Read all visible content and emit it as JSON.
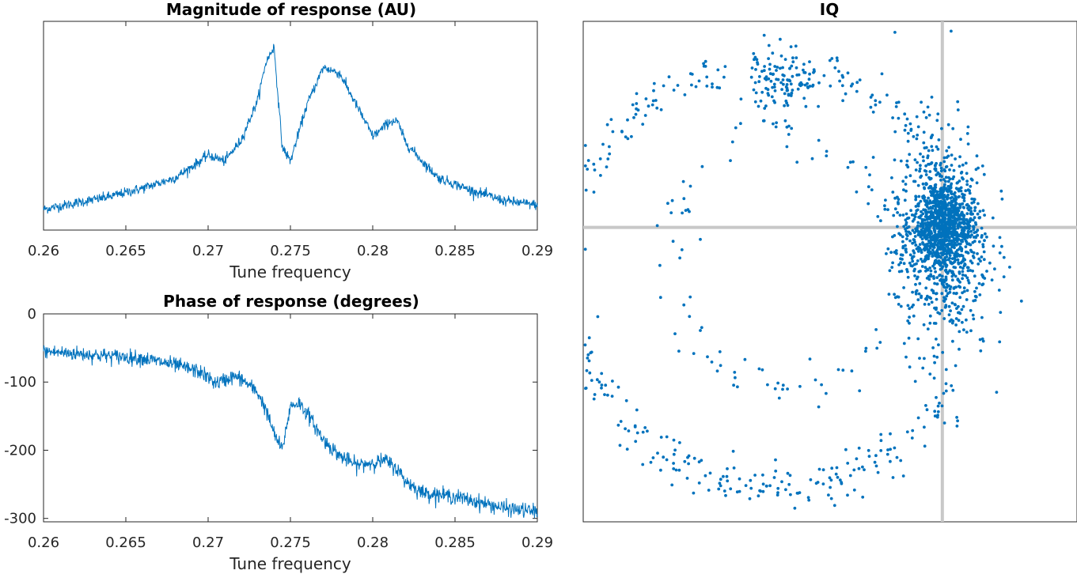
{
  "colors": {
    "series": "#0072BD",
    "reference": "#C8C8C8",
    "axes": "#262626"
  },
  "chart_data": [
    {
      "type": "line",
      "title": "Magnitude of response (AU)",
      "xlabel": "Tune frequency",
      "ylabel": "",
      "xlim": [
        0.26,
        0.29
      ],
      "ylim": [
        0,
        1
      ],
      "xticks": [
        "0.26",
        "0.265",
        "0.27",
        "0.275",
        "0.28",
        "0.285",
        "0.29"
      ],
      "yticks": [],
      "grid": false,
      "series": [
        {
          "x": [
            0.26,
            0.262,
            0.264,
            0.266,
            0.268,
            0.2695,
            0.27,
            0.271,
            0.272,
            0.273,
            0.2735,
            0.274,
            0.2745,
            0.275,
            0.276,
            0.277,
            0.278,
            0.279,
            0.28,
            0.2805,
            0.281,
            0.2815,
            0.282,
            0.283,
            0.284,
            0.286,
            0.288,
            0.29
          ],
          "values": [
            0.1,
            0.13,
            0.16,
            0.2,
            0.25,
            0.33,
            0.36,
            0.33,
            0.43,
            0.62,
            0.8,
            0.88,
            0.4,
            0.33,
            0.6,
            0.78,
            0.75,
            0.6,
            0.45,
            0.48,
            0.52,
            0.52,
            0.42,
            0.33,
            0.25,
            0.19,
            0.14,
            0.12
          ]
        }
      ]
    },
    {
      "type": "line",
      "title": "Phase of response (degrees)",
      "xlabel": "Tune frequency",
      "ylabel": "",
      "xlim": [
        0.26,
        0.29
      ],
      "ylim": [
        -305,
        0
      ],
      "xticks": [
        "0.26",
        "0.265",
        "0.27",
        "0.275",
        "0.28",
        "0.285",
        "0.29"
      ],
      "yticks": [
        "0",
        "-100",
        "-200",
        "-300"
      ],
      "grid": false,
      "series": [
        {
          "x": [
            0.26,
            0.263,
            0.266,
            0.268,
            0.2695,
            0.2705,
            0.2715,
            0.272,
            0.273,
            0.2735,
            0.274,
            0.2745,
            0.275,
            0.2755,
            0.276,
            0.277,
            0.278,
            0.279,
            0.28,
            0.2808,
            0.2815,
            0.282,
            0.283,
            0.285,
            0.288,
            0.29
          ],
          "values": [
            -55,
            -60,
            -65,
            -75,
            -85,
            -102,
            -92,
            -95,
            -115,
            -140,
            -175,
            -200,
            -135,
            -130,
            -145,
            -185,
            -208,
            -222,
            -218,
            -215,
            -228,
            -245,
            -262,
            -268,
            -285,
            -290
          ]
        }
      ]
    },
    {
      "type": "scatter",
      "title": "IQ",
      "xlabel": "",
      "ylabel": "",
      "xlim": [
        -1.2,
        0.45
      ],
      "ylim": [
        -1.0,
        0.7
      ],
      "xticks": [],
      "yticks": [],
      "grid": false,
      "reference_lines": {
        "x": 0,
        "y": 0
      },
      "clusters": [
        {
          "description": "dense cloud",
          "cx": 0.0,
          "cy": 0.0,
          "sx": 0.05,
          "sy": 0.08,
          "count": 900
        },
        {
          "description": "spread cloud",
          "cx": 0.0,
          "cy": -0.05,
          "sx": 0.08,
          "sy": 0.2,
          "count": 600
        },
        {
          "description": "outer spiral arm",
          "count": 460
        },
        {
          "description": "inner loop",
          "count": 110
        },
        {
          "description": "upper cluster",
          "cx": -0.53,
          "cy": 0.48,
          "sx": 0.05,
          "sy": 0.05,
          "count": 100
        }
      ]
    }
  ]
}
